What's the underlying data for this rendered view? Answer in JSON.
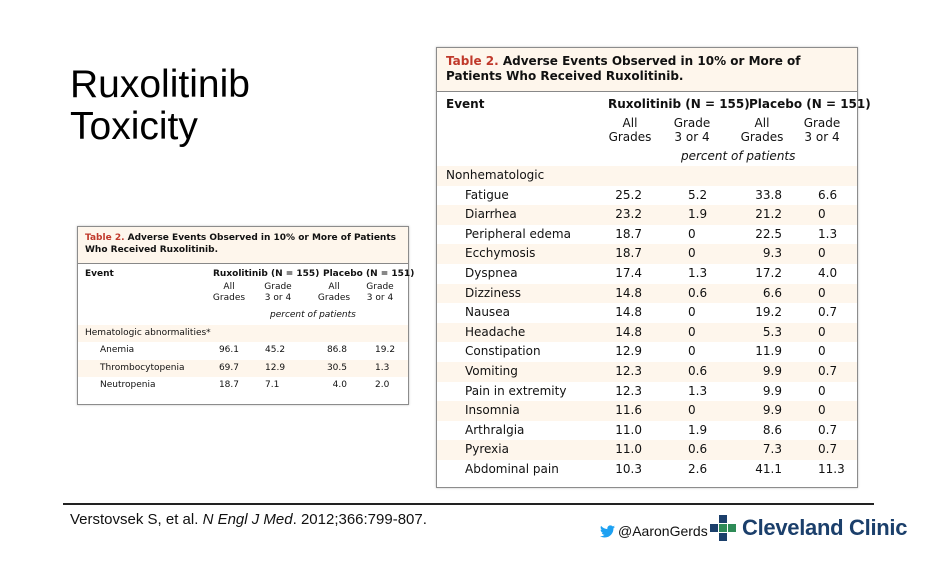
{
  "slide": {
    "title_line1": "Ruxolitinib",
    "title_line2": "Toxicity"
  },
  "big_table": {
    "caption_num": "Table 2.",
    "caption_text": " Adverse Events Observed in 10% or More of Patients Who Received Ruxolitinib.",
    "col_event": "Event",
    "group_rux": "Ruxolitinib (N = 155)",
    "group_pla": "Placebo (N = 151)",
    "sub_all_1": "All",
    "sub_all_2": "Grades",
    "sub_g34_1": "Grade",
    "sub_g34_2": "3 or 4",
    "unit": "percent of patients",
    "section": "Nonhematologic",
    "rows": [
      {
        "event": "Fatigue",
        "rux_all": "25.2",
        "rux_g34": "5.2",
        "pla_all": "33.8",
        "pla_g34": "6.6"
      },
      {
        "event": "Diarrhea",
        "rux_all": "23.2",
        "rux_g34": "1.9",
        "pla_all": "21.2",
        "pla_g34": "0"
      },
      {
        "event": "Peripheral edema",
        "rux_all": "18.7",
        "rux_g34": "0",
        "pla_all": "22.5",
        "pla_g34": "1.3"
      },
      {
        "event": "Ecchymosis",
        "rux_all": "18.7",
        "rux_g34": "0",
        "pla_all": "9.3",
        "pla_g34": "0"
      },
      {
        "event": "Dyspnea",
        "rux_all": "17.4",
        "rux_g34": "1.3",
        "pla_all": "17.2",
        "pla_g34": "4.0"
      },
      {
        "event": "Dizziness",
        "rux_all": "14.8",
        "rux_g34": "0.6",
        "pla_all": "6.6",
        "pla_g34": "0"
      },
      {
        "event": "Nausea",
        "rux_all": "14.8",
        "rux_g34": "0",
        "pla_all": "19.2",
        "pla_g34": "0.7"
      },
      {
        "event": "Headache",
        "rux_all": "14.8",
        "rux_g34": "0",
        "pla_all": "5.3",
        "pla_g34": "0"
      },
      {
        "event": "Constipation",
        "rux_all": "12.9",
        "rux_g34": "0",
        "pla_all": "11.9",
        "pla_g34": "0"
      },
      {
        "event": "Vomiting",
        "rux_all": "12.3",
        "rux_g34": "0.6",
        "pla_all": "9.9",
        "pla_g34": "0.7"
      },
      {
        "event": "Pain in extremity",
        "rux_all": "12.3",
        "rux_g34": "1.3",
        "pla_all": "9.9",
        "pla_g34": "0"
      },
      {
        "event": "Insomnia",
        "rux_all": "11.6",
        "rux_g34": "0",
        "pla_all": "9.9",
        "pla_g34": "0"
      },
      {
        "event": "Arthralgia",
        "rux_all": "11.0",
        "rux_g34": "1.9",
        "pla_all": "8.6",
        "pla_g34": "0.7"
      },
      {
        "event": "Pyrexia",
        "rux_all": "11.0",
        "rux_g34": "0.6",
        "pla_all": "7.3",
        "pla_g34": "0.7"
      },
      {
        "event": "Abdominal pain",
        "rux_all": "10.3",
        "rux_g34": "2.6",
        "pla_all": "41.1",
        "pla_g34": "11.3"
      }
    ]
  },
  "small_table": {
    "caption_num": "Table 2.",
    "caption_text": " Adverse Events Observed in 10% or More of Patients Who Received Ruxolitinib.",
    "col_event": "Event",
    "group_rux": "Ruxolitinib (N = 155)",
    "group_pla": "Placebo (N = 151)",
    "sub_all_1": "All",
    "sub_all_2": "Grades",
    "sub_g34_1": "Grade",
    "sub_g34_2": "3 or 4",
    "unit": "percent of patients",
    "section": "Hematologic abnormalities*",
    "rows": [
      {
        "event": "Anemia",
        "rux_all": "96.1",
        "rux_g34": "45.2",
        "pla_all": "86.8",
        "pla_g34": "19.2"
      },
      {
        "event": "Thrombocytopenia",
        "rux_all": "69.7",
        "rux_g34": "12.9",
        "pla_all": "30.5",
        "pla_g34": "1.3"
      },
      {
        "event": "Neutropenia",
        "rux_all": "18.7",
        "rux_g34": "7.1",
        "pla_all": "4.0",
        "pla_g34": "2.0"
      }
    ]
  },
  "footer": {
    "citation_prefix": "Verstovsek S, et al. ",
    "citation_journal": "N Engl J Med",
    "citation_suffix": ". 2012;366:799-807.",
    "twitter_handle": "@AaronGerds",
    "twitter_icon": "twitter-bird-icon",
    "brand_name": "Cleveland Clinic",
    "brand_color": "#1b3f6b",
    "brand_accent": "#2e8b57"
  },
  "colors": {
    "caption_bg": "#fef6ec",
    "caption_num": "#c0392b",
    "row_shade": "#fef6ec"
  }
}
